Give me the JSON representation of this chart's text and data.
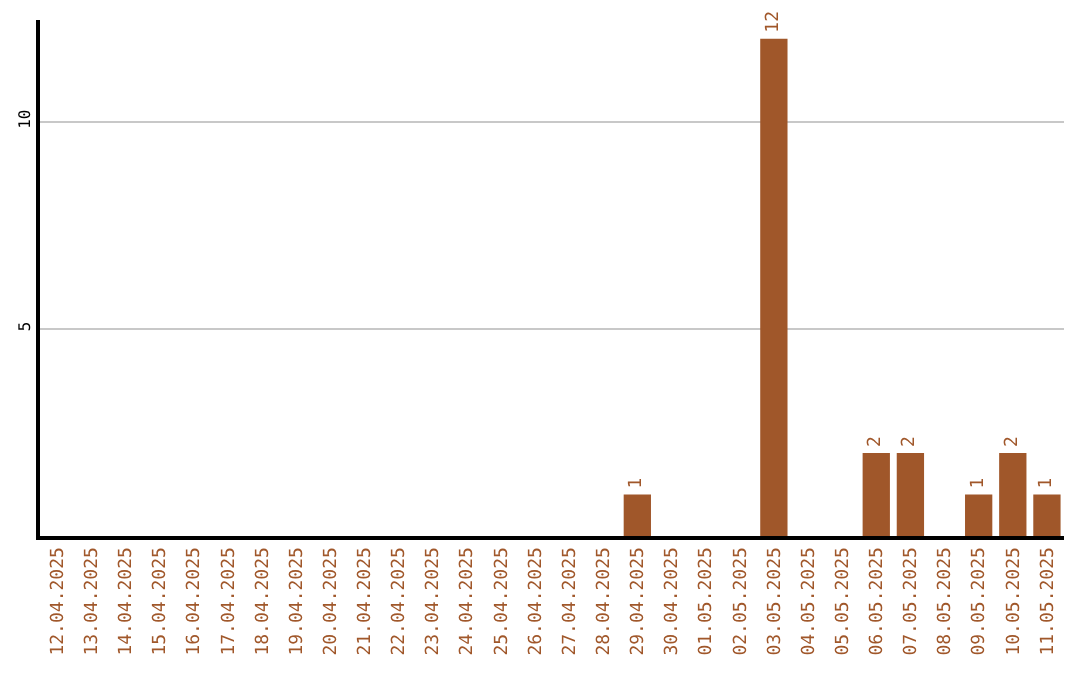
{
  "chart_data": {
    "type": "bar",
    "categories": [
      "12.04.2025",
      "13.04.2025",
      "14.04.2025",
      "15.04.2025",
      "16.04.2025",
      "17.04.2025",
      "18.04.2025",
      "19.04.2025",
      "20.04.2025",
      "21.04.2025",
      "22.04.2025",
      "23.04.2025",
      "24.04.2025",
      "25.04.2025",
      "26.04.2025",
      "27.04.2025",
      "28.04.2025",
      "29.04.2025",
      "30.04.2025",
      "01.05.2025",
      "02.05.2025",
      "03.05.2025",
      "04.05.2025",
      "05.05.2025",
      "06.05.2025",
      "07.05.2025",
      "08.05.2025",
      "09.05.2025",
      "10.05.2025",
      "11.05.2025"
    ],
    "values": [
      0,
      0,
      0,
      0,
      0,
      0,
      0,
      0,
      0,
      0,
      0,
      0,
      0,
      0,
      0,
      0,
      0,
      1,
      0,
      0,
      0,
      12,
      0,
      0,
      2,
      2,
      0,
      1,
      2,
      1
    ],
    "value_labels": [
      null,
      null,
      null,
      null,
      null,
      null,
      null,
      null,
      null,
      null,
      null,
      null,
      null,
      null,
      null,
      null,
      null,
      "1",
      null,
      null,
      null,
      "12",
      null,
      null,
      "2",
      "2",
      null,
      "1",
      "2",
      "1"
    ],
    "color": "#a0572a",
    "ylim": [
      0,
      12.45
    ],
    "yticks": [
      5,
      10
    ],
    "grid": "y"
  }
}
